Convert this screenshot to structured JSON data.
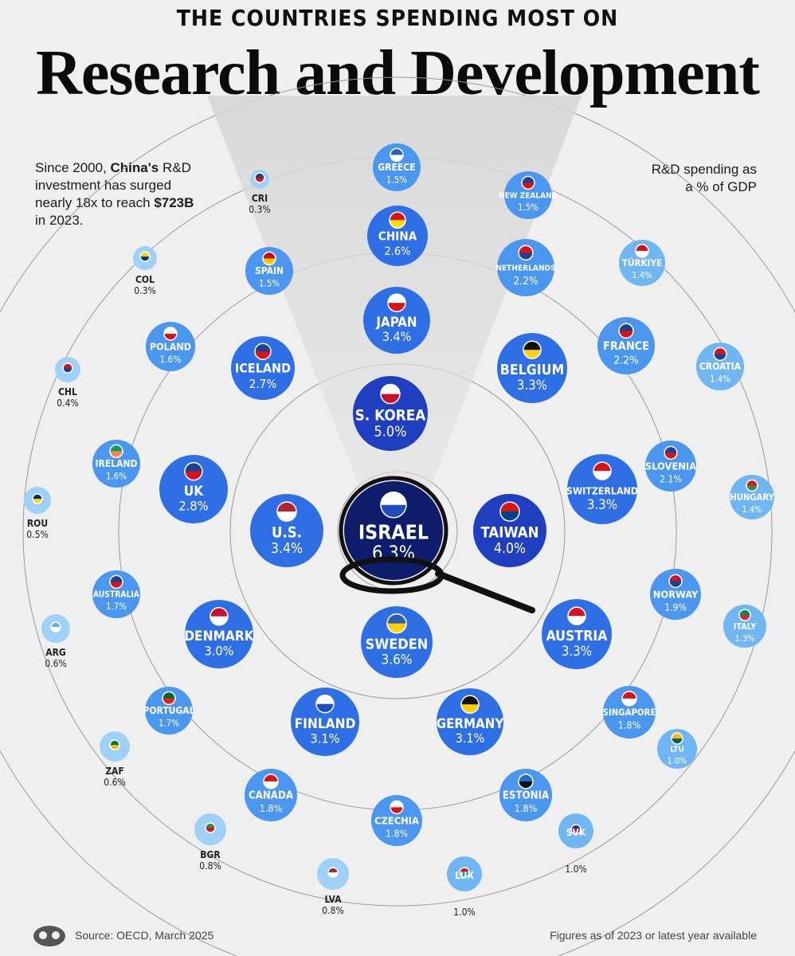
{
  "header": {
    "top_line": "THE COUNTRIES SPENDING MOST ON",
    "title": "Research and Development"
  },
  "notes": {
    "left_parts": [
      "Since 2000, ",
      "China's",
      " R&D investment has surged nearly 18x to reach ",
      "$723B",
      " in 2023."
    ],
    "right": "R&D spending as a % of GDP"
  },
  "footer": {
    "source": "Source: OECD, March 2025",
    "figures_note": "Figures as of 2023 or latest year available"
  },
  "chart_data": {
    "type": "bubble",
    "metric": "R&D spending as a % of GDP",
    "points": [
      {
        "label": "ISRAEL",
        "value": 6.3,
        "display": "6.3%",
        "flag": "israel-flag"
      },
      {
        "label": "S. KOREA",
        "value": 5.0,
        "display": "5.0%",
        "flag": "south-korea-flag"
      },
      {
        "label": "TAIWAN",
        "value": 4.0,
        "display": "4.0%",
        "flag": "taiwan-flag"
      },
      {
        "label": "U.S.",
        "value": 3.4,
        "display": "3.4%",
        "flag": "usa-flag"
      },
      {
        "label": "JAPAN",
        "value": 3.4,
        "display": "3.4%",
        "flag": "japan-flag"
      },
      {
        "label": "SWEDEN",
        "value": 3.6,
        "display": "3.6%",
        "flag": "sweden-flag"
      },
      {
        "label": "BELGIUM",
        "value": 3.3,
        "display": "3.3%",
        "flag": "belgium-flag"
      },
      {
        "label": "SWITZERLAND",
        "value": 3.3,
        "display": "3.3%",
        "flag": "switzerland-flag"
      },
      {
        "label": "AUSTRIA",
        "value": 3.3,
        "display": "3.3%",
        "flag": "austria-flag"
      },
      {
        "label": "GERMANY",
        "value": 3.1,
        "display": "3.1%",
        "flag": "germany-flag"
      },
      {
        "label": "FINLAND",
        "value": 3.1,
        "display": "3.1%",
        "flag": "finland-flag"
      },
      {
        "label": "DENMARK",
        "value": 3.0,
        "display": "3.0%",
        "flag": "denmark-flag"
      },
      {
        "label": "UK",
        "value": 2.8,
        "display": "2.8%",
        "flag": "uk-flag"
      },
      {
        "label": "ICELAND",
        "value": 2.7,
        "display": "2.7%",
        "flag": "iceland-flag"
      },
      {
        "label": "CHINA",
        "value": 2.6,
        "display": "2.6%",
        "flag": "china-flag"
      },
      {
        "label": "NETHERLANDS",
        "value": 2.2,
        "display": "2.2%",
        "flag": "netherlands-flag"
      },
      {
        "label": "FRANCE",
        "value": 2.2,
        "display": "2.2%",
        "flag": "france-flag"
      },
      {
        "label": "SLOVENIA",
        "value": 2.1,
        "display": "2.1%",
        "flag": "slovenia-flag"
      },
      {
        "label": "NORWAY",
        "value": 1.9,
        "display": "1.9%",
        "flag": "norway-flag"
      },
      {
        "label": "SINGAPORE",
        "value": 1.8,
        "display": "1.8%",
        "flag": "singapore-flag"
      },
      {
        "label": "ESTONIA",
        "value": 1.8,
        "display": "1.8%",
        "flag": "estonia-flag"
      },
      {
        "label": "CZECHIA",
        "value": 1.8,
        "display": "1.8%",
        "flag": "czechia-flag"
      },
      {
        "label": "CANADA",
        "value": 1.8,
        "display": "1.8%",
        "flag": "canada-flag"
      },
      {
        "label": "PORTUGAL",
        "value": 1.7,
        "display": "1.7%",
        "flag": "portugal-flag"
      },
      {
        "label": "AUSTRALIA",
        "value": 1.7,
        "display": "1.7%",
        "flag": "australia-flag"
      },
      {
        "label": "IRELAND",
        "value": 1.6,
        "display": "1.6%",
        "flag": "ireland-flag"
      },
      {
        "label": "POLAND",
        "value": 1.6,
        "display": "1.6%",
        "flag": "poland-flag"
      },
      {
        "label": "SPAIN",
        "value": 1.5,
        "display": "1.5%",
        "flag": "spain-flag"
      },
      {
        "label": "GREECE",
        "value": 1.5,
        "display": "1.5%",
        "flag": "greece-flag"
      },
      {
        "label": "NEW ZEALAND",
        "value": 1.5,
        "display": "1.5%",
        "flag": "new-zealand-flag"
      },
      {
        "label": "TÜRKIYE",
        "value": 1.4,
        "display": "1.4%",
        "flag": "turkiye-flag"
      },
      {
        "label": "CROATIA",
        "value": 1.4,
        "display": "1.4%",
        "flag": "croatia-flag"
      },
      {
        "label": "HUNGARY",
        "value": 1.4,
        "display": "1.4%",
        "flag": "hungary-flag"
      },
      {
        "label": "ITALY",
        "value": 1.3,
        "display": "1.3%",
        "flag": "italy-flag"
      },
      {
        "label": "LTU",
        "value": 1.0,
        "display": "1.0%",
        "flag": "lithuania-flag"
      },
      {
        "label": "SVK",
        "value": 1.0,
        "display": "1.0%",
        "flag": "slovakia-flag"
      },
      {
        "label": "LUX",
        "value": 1.0,
        "display": "1.0%",
        "flag": "luxembourg-flag"
      },
      {
        "label": "LVA",
        "value": 0.8,
        "display": "0.8%",
        "flag": "latvia-flag"
      },
      {
        "label": "BGR",
        "value": 0.8,
        "display": "0.8%",
        "flag": "bulgaria-flag"
      },
      {
        "label": "ZAF",
        "value": 0.6,
        "display": "0.6%",
        "flag": "south-africa-flag"
      },
      {
        "label": "ARG",
        "value": 0.6,
        "display": "0.6%",
        "flag": "argentina-flag"
      },
      {
        "label": "ROU",
        "value": 0.5,
        "display": "0.5%",
        "flag": "romania-flag"
      },
      {
        "label": "CHL",
        "value": 0.4,
        "display": "0.4%",
        "flag": "chile-flag"
      },
      {
        "label": "COL",
        "value": 0.3,
        "display": "0.3%",
        "flag": "colombia-flag"
      },
      {
        "label": "CRI",
        "value": 0.3,
        "display": "0.3%",
        "flag": "costa-rica-flag"
      }
    ],
    "colors": {
      "top": "#0d1d6b",
      "high": "#1f3fc0",
      "mid": "#2f6fe6",
      "low": "#4b96ee",
      "lower": "#6fb6f3",
      "lowest": "#9fd1f7",
      "ring_line": "#9a9a9a",
      "background": "#efefef"
    },
    "icons": [
      "magnifying-glass-icon",
      "publisher-logo-icon"
    ]
  }
}
